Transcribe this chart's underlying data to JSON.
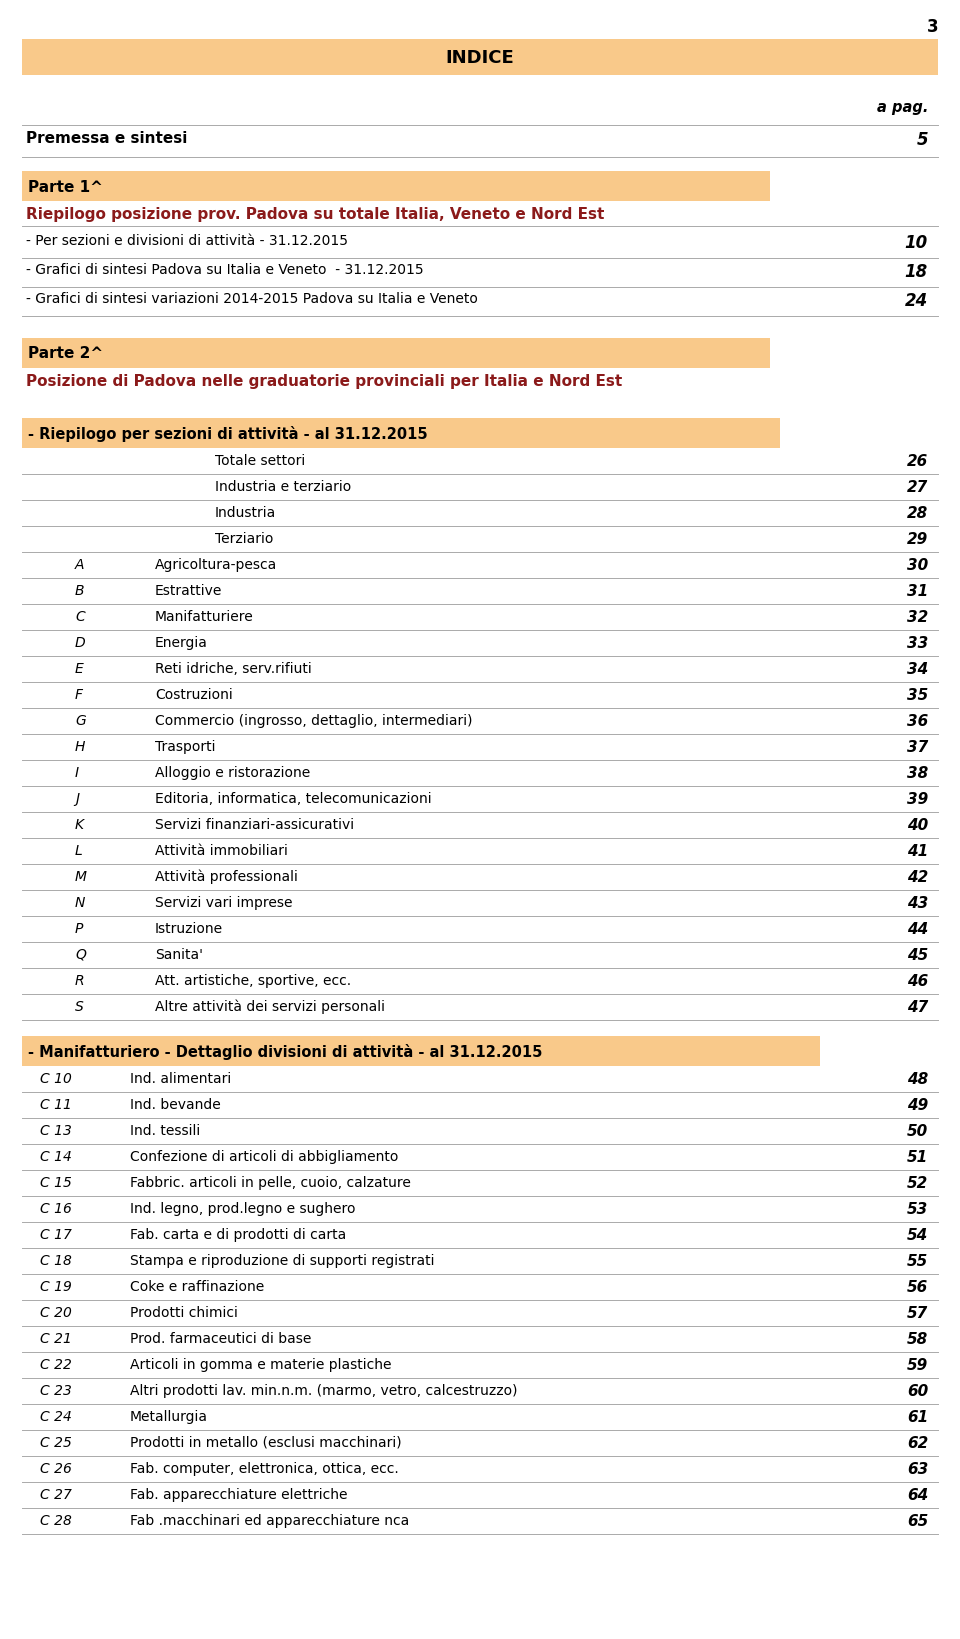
{
  "page_number": "3",
  "bg_color": "#ffffff",
  "orange_bg": "#f9c98a",
  "header_color": "#8B1A1A",
  "text_color": "#000000",
  "line_color": "#aaaaaa",
  "indice_text": "INDICE",
  "apag_text": "a pag.",
  "section0": {
    "label": "Premessa e sintesi",
    "page": "5"
  },
  "parte1_header": "Parte 1^",
  "parte1_subtitle": "Riepilogo posizione prov. Padova su totale Italia, Veneto e Nord Est",
  "parte1_items": [
    {
      "text": "- Per sezioni e divisioni di attività - 31.12.2015",
      "page": "10"
    },
    {
      "text": "- Grafici di sintesi Padova su Italia e Veneto  - 31.12.2015",
      "page": "18"
    },
    {
      "text": "- Grafici di sintesi variazioni 2014-2015 Padova su Italia e Veneto",
      "page": "24"
    }
  ],
  "parte2_header": "Parte 2^",
  "parte2_subtitle": "Posizione di Padova nelle graduatorie provinciali per Italia e Nord Est",
  "section2_header": "- Riepilogo per sezioni di attività - al 31.12.2015",
  "section2_items": [
    {
      "letter": "",
      "text": "Totale settori",
      "page": "26",
      "indent": 1
    },
    {
      "letter": "",
      "text": "Industria e terziario",
      "page": "27",
      "indent": 1
    },
    {
      "letter": "",
      "text": "Industria",
      "page": "28",
      "indent": 1
    },
    {
      "letter": "",
      "text": "Terziario",
      "page": "29",
      "indent": 1
    },
    {
      "letter": "A",
      "text": "Agricoltura-pesca",
      "page": "30",
      "indent": 0
    },
    {
      "letter": "B",
      "text": "Estrattive",
      "page": "31",
      "indent": 0
    },
    {
      "letter": "C",
      "text": "Manifatturiere",
      "page": "32",
      "indent": 0
    },
    {
      "letter": "D",
      "text": "Energia",
      "page": "33",
      "indent": 0
    },
    {
      "letter": "E",
      "text": "Reti idriche, serv.rifiuti",
      "page": "34",
      "indent": 0
    },
    {
      "letter": "F",
      "text": "Costruzioni",
      "page": "35",
      "indent": 0
    },
    {
      "letter": "G",
      "text": "Commercio (ingrosso, dettaglio, intermediari)",
      "page": "36",
      "indent": 0
    },
    {
      "letter": "H",
      "text": "Trasporti",
      "page": "37",
      "indent": 0
    },
    {
      "letter": "I",
      "text": "Alloggio e ristorazione",
      "page": "38",
      "indent": 0
    },
    {
      "letter": "J",
      "text": "Editoria, informatica, telecomunicazioni",
      "page": "39",
      "indent": 0
    },
    {
      "letter": "K",
      "text": "Servizi finanziari-assicurativi",
      "page": "40",
      "indent": 0
    },
    {
      "letter": "L",
      "text": "Attività immobiliari",
      "page": "41",
      "indent": 0
    },
    {
      "letter": "M",
      "text": "Attività professionali",
      "page": "42",
      "indent": 0
    },
    {
      "letter": "N",
      "text": "Servizi vari imprese",
      "page": "43",
      "indent": 0
    },
    {
      "letter": "P",
      "text": "Istruzione",
      "page": "44",
      "indent": 0
    },
    {
      "letter": "Q",
      "text": "Sanita'",
      "page": "45",
      "indent": 0
    },
    {
      "letter": "R",
      "text": "Att. artistiche, sportive, ecc.",
      "page": "46",
      "indent": 0
    },
    {
      "letter": "S",
      "text": "Altre attività dei servizi personali",
      "page": "47",
      "indent": 0
    }
  ],
  "section3_header": "- Manifatturiero - Dettaglio divisioni di attività - al 31.12.2015",
  "section3_items": [
    {
      "letter": "C 10",
      "text": "Ind. alimentari",
      "page": "48"
    },
    {
      "letter": "C 11",
      "text": "Ind. bevande",
      "page": "49"
    },
    {
      "letter": "C 13",
      "text": "Ind. tessili",
      "page": "50"
    },
    {
      "letter": "C 14",
      "text": "Confezione di articoli di abbigliamento",
      "page": "51"
    },
    {
      "letter": "C 15",
      "text": "Fabbric. articoli in pelle, cuoio, calzature",
      "page": "52"
    },
    {
      "letter": "C 16",
      "text": "Ind. legno, prod.legno e sughero",
      "page": "53"
    },
    {
      "letter": "C 17",
      "text": "Fab. carta e di prodotti di carta",
      "page": "54"
    },
    {
      "letter": "C 18",
      "text": "Stampa e riproduzione di supporti registrati",
      "page": "55"
    },
    {
      "letter": "C 19",
      "text": "Coke e raffinazione",
      "page": "56"
    },
    {
      "letter": "C 20",
      "text": "Prodotti chimici",
      "page": "57"
    },
    {
      "letter": "C 21",
      "text": "Prod. farmaceutici di base",
      "page": "58"
    },
    {
      "letter": "C 22",
      "text": "Articoli in gomma e materie plastiche",
      "page": "59"
    },
    {
      "letter": "C 23",
      "text": "Altri prodotti lav. min.n.m. (marmo, vetro, calcestruzzo)",
      "page": "60"
    },
    {
      "letter": "C 24",
      "text": "Metallurgia",
      "page": "61"
    },
    {
      "letter": "C 25",
      "text": "Prodotti in metallo (esclusi macchinari)",
      "page": "62"
    },
    {
      "letter": "C 26",
      "text": "Fab. computer, elettronica, ottica, ecc.",
      "page": "63"
    },
    {
      "letter": "C 27",
      "text": "Fab. apparecchiature elettriche",
      "page": "64"
    },
    {
      "letter": "C 28",
      "text": "Fab .macchinari ed apparecchiature nca",
      "page": "65"
    }
  ]
}
